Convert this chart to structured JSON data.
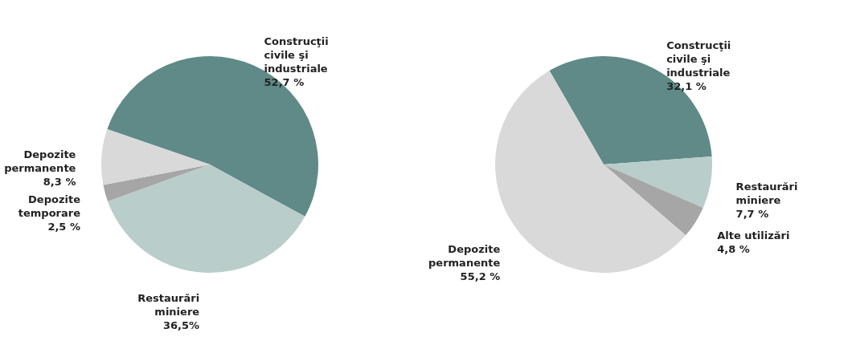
{
  "chart_data": [
    {
      "type": "pie",
      "categories": [
        "Construcţii civile şi industriale",
        "Restaurări miniere",
        "Depozite temporare",
        "Depozite permanente"
      ],
      "values": [
        52.7,
        36.5,
        2.5,
        8.3
      ],
      "value_labels": [
        "52,7 %",
        "36,5%",
        "2,5 %",
        "8,3 %"
      ],
      "colors": [
        "#5f8a87",
        "#b9cdcb",
        "#a6a6a6",
        "#d9d9d9"
      ],
      "legend": false
    },
    {
      "type": "pie",
      "categories": [
        "Construcţii civile şi industriale",
        "Restaurări miniere",
        "Alte utilizări",
        "Depozite permanente"
      ],
      "values": [
        32.1,
        7.7,
        4.8,
        55.2
      ],
      "value_labels": [
        "32,1 %",
        "7,7 %",
        "4,8 %",
        "55,2 %"
      ],
      "colors": [
        "#5f8a87",
        "#b9cdcb",
        "#a6a6a6",
        "#d9d9d9"
      ],
      "legend": false
    }
  ]
}
